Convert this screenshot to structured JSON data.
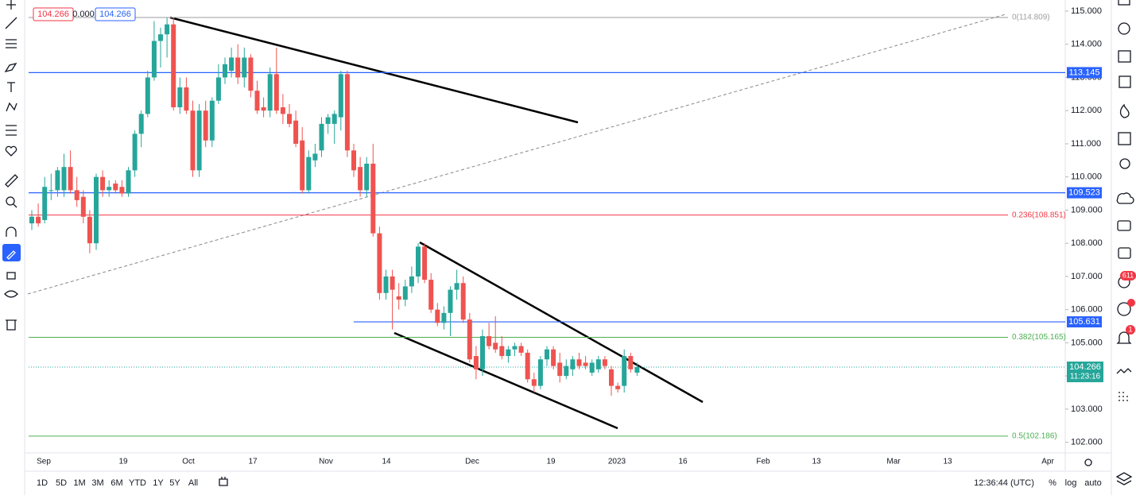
{
  "chart_data": {
    "type": "candlestick",
    "header": {
      "bid": "104.266",
      "spread": "0.000",
      "ask": "104.266"
    },
    "candles": [
      [
        108.6,
        109.0,
        108.4,
        108.8
      ],
      [
        108.8,
        109.2,
        108.5,
        108.6
      ],
      [
        108.7,
        110.0,
        108.6,
        109.7
      ],
      [
        109.6,
        110.1,
        109.3,
        109.6
      ],
      [
        109.6,
        110.3,
        109.4,
        110.2
      ],
      [
        109.6,
        110.7,
        109.4,
        110.3
      ],
      [
        110.3,
        110.8,
        109.5,
        109.6
      ],
      [
        109.6,
        110.0,
        109.1,
        109.3
      ],
      [
        109.4,
        109.6,
        108.6,
        108.8
      ],
      [
        108.8,
        109.0,
        107.7,
        108.0
      ],
      [
        108.0,
        110.1,
        107.8,
        110.0
      ],
      [
        110.0,
        110.2,
        109.4,
        109.6
      ],
      [
        109.6,
        109.9,
        109.4,
        109.7
      ],
      [
        109.8,
        109.9,
        109.5,
        109.6
      ],
      [
        109.7,
        109.9,
        109.4,
        109.5
      ],
      [
        109.5,
        110.3,
        109.4,
        110.2
      ],
      [
        110.2,
        111.4,
        110.0,
        111.3
      ],
      [
        111.3,
        112.0,
        110.9,
        111.9
      ],
      [
        111.9,
        113.2,
        111.8,
        113.0
      ],
      [
        113.0,
        114.7,
        112.9,
        114.1
      ],
      [
        114.1,
        114.5,
        113.3,
        114.3
      ],
      [
        114.3,
        114.8,
        113.6,
        114.6
      ],
      [
        114.6,
        114.8,
        112.0,
        112.1
      ],
      [
        112.1,
        113.0,
        111.9,
        112.7
      ],
      [
        112.7,
        113.0,
        111.9,
        112.0
      ],
      [
        112.0,
        112.3,
        110.0,
        110.2
      ],
      [
        110.2,
        112.2,
        110.0,
        112.0
      ],
      [
        112.0,
        112.3,
        110.9,
        111.1
      ],
      [
        111.1,
        112.4,
        110.9,
        112.3
      ],
      [
        112.3,
        113.4,
        112.2,
        113.0
      ],
      [
        113.0,
        113.6,
        112.8,
        113.4
      ],
      [
        113.2,
        113.9,
        113.0,
        113.6
      ],
      [
        113.6,
        114.0,
        112.8,
        113.0
      ],
      [
        113.0,
        113.9,
        112.7,
        113.6
      ],
      [
        113.6,
        113.7,
        112.4,
        112.6
      ],
      [
        112.6,
        112.9,
        111.9,
        112.0
      ],
      [
        112.1,
        112.4,
        111.8,
        112.0
      ],
      [
        112.0,
        113.3,
        111.8,
        113.1
      ],
      [
        113.1,
        113.9,
        111.9,
        112.0
      ],
      [
        112.1,
        112.5,
        111.6,
        111.9
      ],
      [
        111.9,
        112.2,
        111.5,
        111.6
      ],
      [
        111.7,
        112.0,
        110.9,
        111.0
      ],
      [
        111.1,
        111.5,
        109.5,
        109.6
      ],
      [
        109.6,
        110.8,
        109.5,
        110.6
      ],
      [
        110.5,
        111.0,
        110.3,
        110.7
      ],
      [
        110.8,
        111.8,
        110.6,
        111.6
      ],
      [
        111.6,
        111.9,
        111.3,
        111.8
      ],
      [
        111.6,
        112.0,
        111.0,
        111.9
      ],
      [
        111.8,
        113.2,
        111.4,
        113.1
      ],
      [
        113.1,
        113.2,
        110.6,
        110.8
      ],
      [
        110.8,
        111.0,
        110.0,
        110.2
      ],
      [
        110.3,
        110.6,
        109.4,
        109.6
      ],
      [
        109.6,
        110.6,
        109.4,
        110.4
      ],
      [
        110.4,
        111.0,
        108.2,
        108.3
      ],
      [
        108.3,
        108.5,
        106.3,
        106.5
      ],
      [
        106.5,
        107.2,
        106.3,
        107.0
      ],
      [
        107.0,
        107.2,
        105.4,
        106.6
      ],
      [
        106.4,
        106.8,
        106.0,
        106.3
      ],
      [
        106.3,
        106.9,
        106.1,
        106.7
      ],
      [
        106.7,
        107.3,
        106.5,
        107.0
      ],
      [
        107.0,
        108.0,
        106.8,
        107.9
      ],
      [
        107.9,
        108.0,
        106.8,
        106.9
      ],
      [
        106.9,
        107.1,
        105.9,
        106.0
      ],
      [
        106.0,
        106.2,
        105.5,
        105.6
      ],
      [
        105.6,
        106.1,
        105.4,
        105.9
      ],
      [
        105.9,
        106.7,
        105.2,
        106.6
      ],
      [
        106.6,
        107.2,
        106.3,
        106.8
      ],
      [
        106.8,
        107.0,
        105.6,
        105.7
      ],
      [
        105.7,
        105.9,
        104.4,
        104.5
      ],
      [
        104.6,
        104.9,
        103.9,
        104.2
      ],
      [
        104.2,
        105.4,
        104.0,
        105.2
      ],
      [
        105.2,
        105.6,
        104.8,
        104.9
      ],
      [
        105.0,
        105.8,
        104.7,
        104.8
      ],
      [
        104.9,
        105.2,
        104.5,
        104.6
      ],
      [
        104.6,
        104.9,
        104.4,
        104.8
      ],
      [
        104.8,
        105.0,
        104.6,
        104.9
      ],
      [
        104.9,
        105.0,
        104.6,
        104.7
      ],
      [
        104.7,
        104.8,
        103.8,
        103.9
      ],
      [
        103.9,
        104.1,
        103.5,
        103.7
      ],
      [
        103.7,
        104.6,
        103.6,
        104.5
      ],
      [
        104.5,
        104.9,
        104.3,
        104.8
      ],
      [
        104.8,
        104.9,
        104.2,
        104.3
      ],
      [
        104.4,
        104.7,
        103.8,
        104.0
      ],
      [
        104.0,
        104.5,
        103.9,
        104.3
      ],
      [
        104.2,
        104.6,
        104.0,
        104.5
      ],
      [
        104.5,
        104.7,
        104.2,
        104.3
      ],
      [
        104.4,
        104.6,
        104.2,
        104.3
      ],
      [
        104.1,
        104.5,
        104.0,
        104.4
      ],
      [
        104.2,
        104.6,
        104.1,
        104.5
      ],
      [
        104.5,
        104.6,
        104.2,
        104.3
      ],
      [
        104.2,
        104.3,
        103.4,
        103.7
      ],
      [
        103.7,
        103.8,
        103.5,
        103.6
      ],
      [
        103.7,
        104.8,
        103.5,
        104.6
      ],
      [
        104.6,
        104.7,
        104.1,
        104.2
      ],
      [
        104.1,
        104.4,
        104.0,
        104.266
      ]
    ],
    "up_color": "#26a69a",
    "down_color": "#ef5350",
    "ylim": [
      101.2,
      115.335
    ],
    "yticks": [
      {
        "value": 115,
        "label": "115.000"
      },
      {
        "value": 114,
        "label": "114.000"
      },
      {
        "value": 113,
        "label": "113.000"
      },
      {
        "value": 112,
        "label": "112.000"
      },
      {
        "value": 111,
        "label": "111.000"
      },
      {
        "value": 110,
        "label": "110.000"
      },
      {
        "value": 109,
        "label": "109.000"
      },
      {
        "value": 108,
        "label": "108.000"
      },
      {
        "value": 107,
        "label": "107.000"
      },
      {
        "value": 106,
        "label": "106.000"
      },
      {
        "value": 105,
        "label": "105.000"
      },
      {
        "value": 104,
        "label": "104.000"
      },
      {
        "value": 103,
        "label": "103.000"
      },
      {
        "value": 102,
        "label": "102.000"
      }
    ],
    "x_labels": [
      "Sep",
      "19",
      "Oct",
      "17",
      "Nov",
      "14",
      "Dec",
      "19",
      "2023",
      "16",
      "Feb",
      "13",
      "Mar",
      "13",
      "Apr"
    ],
    "levels": [
      113.145,
      109.523,
      105.631
    ],
    "level_color": "#2962ff",
    "fib_levels": [
      {
        "value": 114.809,
        "label": "0(114.809)",
        "color": "#9e9e9e"
      },
      {
        "value": 108.851,
        "label": "0.236(108.851)",
        "color": "#f23645"
      },
      {
        "value": 105.165,
        "label": "0.382(105.165)",
        "color": "#4caf50"
      },
      {
        "value": 102.186,
        "label": "0.5(102.186)",
        "color": "#4caf50"
      }
    ],
    "last_price": 104.266,
    "countdown": "11:23:16",
    "ranges": [
      "1D",
      "5D",
      "1M",
      "3M",
      "6M",
      "YTD",
      "1Y",
      "5Y",
      "All"
    ],
    "clock": "12:36:44 (UTC)",
    "percent": "%",
    "log": "log",
    "auto": "auto",
    "badges": [
      "611",
      "1"
    ]
  }
}
